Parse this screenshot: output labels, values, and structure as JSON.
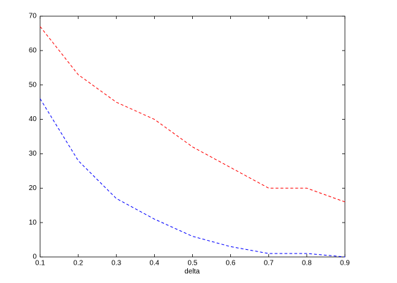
{
  "chart_data": {
    "type": "line",
    "x_label": "delta",
    "x": [
      0.1,
      0.2,
      0.3,
      0.4,
      0.5,
      0.6,
      0.7,
      0.8,
      0.9
    ],
    "series": [
      {
        "color": "#ff0000",
        "values": [
          67,
          53,
          45,
          40,
          32,
          26,
          20,
          20,
          16
        ]
      },
      {
        "color": "#0000ff",
        "values": [
          46,
          28,
          17,
          11,
          6,
          3,
          1,
          1,
          0
        ]
      }
    ],
    "xlim": [
      0.1,
      0.9
    ],
    "xticks": [
      0.1,
      0.2,
      0.3,
      0.4,
      0.5,
      0.6,
      0.7,
      0.8,
      0.9
    ],
    "ylim": [
      0,
      70
    ],
    "yticks": [
      0,
      10,
      20,
      30,
      40,
      50,
      60,
      70
    ],
    "line_style": "dashed",
    "grid": false
  }
}
